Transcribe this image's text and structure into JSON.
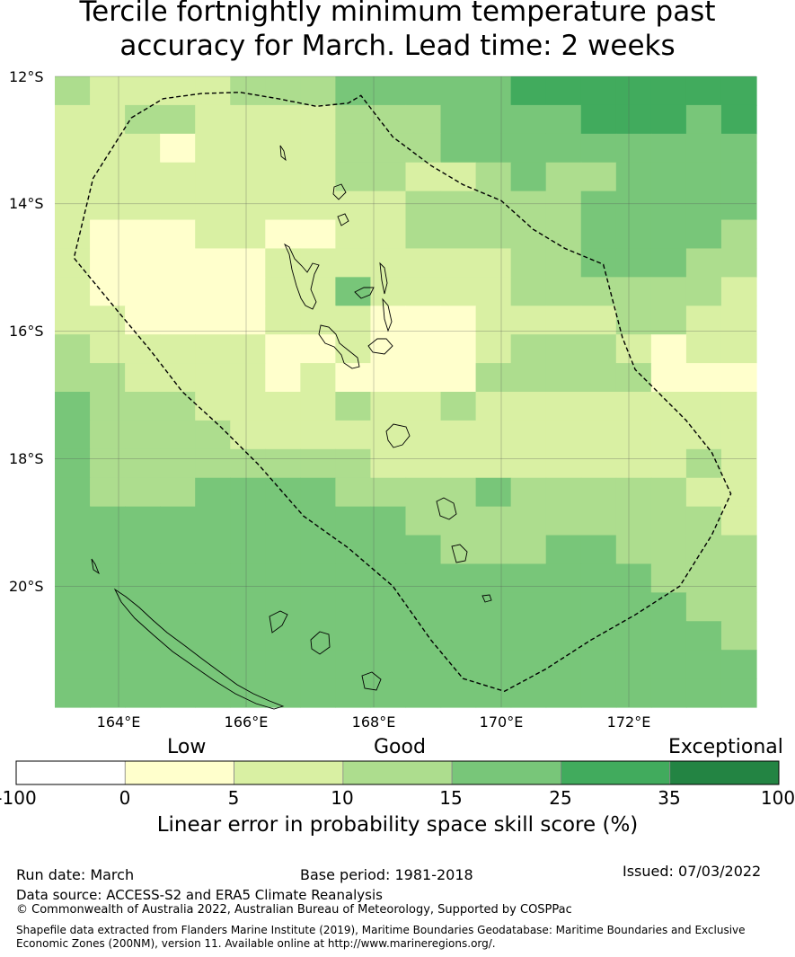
{
  "title_line1": "Tercile fortnightly minimum temperature past",
  "title_line2": "accuracy for March. Lead time: 2 weeks",
  "lat_labels": [
    "12°S",
    "14°S",
    "16°S",
    "18°S",
    "20°S"
  ],
  "lon_labels": [
    "164°E",
    "166°E",
    "168°E",
    "170°E",
    "172°E"
  ],
  "grid_extent": {
    "lon_min": 163,
    "lon_max": 174,
    "lat_max": -12,
    "lat_min": -21.9
  },
  "grid_classes": [
    [
      2,
      1,
      1,
      1,
      1,
      2,
      2,
      2,
      3,
      3,
      3,
      3,
      3,
      4,
      4,
      4,
      4,
      4,
      4,
      4
    ],
    [
      1,
      1,
      2,
      2,
      1,
      1,
      1,
      1,
      2,
      2,
      2,
      3,
      3,
      3,
      3,
      4,
      4,
      4,
      3,
      4
    ],
    [
      1,
      1,
      1,
      0,
      1,
      1,
      1,
      1,
      2,
      2,
      2,
      3,
      3,
      3,
      3,
      3,
      3,
      3,
      3,
      3
    ],
    [
      1,
      1,
      1,
      1,
      1,
      1,
      1,
      1,
      2,
      2,
      1,
      1,
      2,
      3,
      2,
      2,
      3,
      3,
      3,
      3
    ],
    [
      1,
      1,
      1,
      1,
      1,
      1,
      1,
      1,
      1,
      1,
      2,
      2,
      2,
      2,
      2,
      3,
      3,
      3,
      3,
      3
    ],
    [
      1,
      0,
      0,
      0,
      1,
      1,
      0,
      0,
      1,
      1,
      2,
      2,
      2,
      2,
      2,
      3,
      3,
      3,
      3,
      2
    ],
    [
      1,
      0,
      0,
      0,
      0,
      0,
      1,
      1,
      1,
      1,
      1,
      1,
      1,
      2,
      2,
      3,
      3,
      3,
      2,
      2
    ],
    [
      1,
      0,
      0,
      0,
      0,
      0,
      1,
      1,
      3,
      1,
      1,
      1,
      1,
      2,
      2,
      2,
      2,
      2,
      2,
      1
    ],
    [
      1,
      1,
      0,
      0,
      0,
      0,
      1,
      1,
      1,
      0,
      0,
      0,
      1,
      1,
      1,
      1,
      2,
      2,
      1,
      1
    ],
    [
      2,
      1,
      1,
      1,
      1,
      1,
      0,
      0,
      1,
      0,
      0,
      0,
      1,
      2,
      2,
      2,
      1,
      0,
      1,
      1
    ],
    [
      2,
      2,
      1,
      1,
      1,
      1,
      0,
      1,
      0,
      0,
      0,
      0,
      2,
      2,
      2,
      2,
      2,
      0,
      0,
      0
    ],
    [
      3,
      2,
      2,
      2,
      1,
      1,
      1,
      1,
      2,
      1,
      1,
      2,
      1,
      1,
      1,
      1,
      1,
      1,
      1,
      1
    ],
    [
      3,
      2,
      2,
      2,
      2,
      1,
      1,
      1,
      1,
      1,
      1,
      1,
      1,
      1,
      1,
      1,
      1,
      1,
      1,
      1
    ],
    [
      3,
      2,
      2,
      2,
      2,
      2,
      2,
      2,
      2,
      1,
      1,
      1,
      1,
      1,
      1,
      1,
      1,
      1,
      2,
      1
    ],
    [
      3,
      2,
      2,
      2,
      3,
      3,
      3,
      3,
      2,
      2,
      2,
      2,
      3,
      2,
      2,
      2,
      2,
      2,
      1,
      1
    ],
    [
      3,
      3,
      3,
      3,
      3,
      3,
      3,
      3,
      3,
      3,
      2,
      2,
      2,
      2,
      2,
      2,
      2,
      2,
      2,
      1
    ],
    [
      3,
      3,
      3,
      3,
      3,
      3,
      3,
      3,
      3,
      3,
      3,
      2,
      2,
      2,
      3,
      3,
      2,
      2,
      2,
      2
    ],
    [
      3,
      3,
      3,
      3,
      3,
      3,
      3,
      3,
      3,
      3,
      3,
      3,
      3,
      3,
      3,
      3,
      3,
      2,
      2,
      2
    ],
    [
      3,
      3,
      3,
      3,
      3,
      3,
      3,
      3,
      3,
      3,
      3,
      3,
      3,
      3,
      3,
      3,
      3,
      3,
      2,
      2
    ],
    [
      3,
      3,
      3,
      3,
      3,
      3,
      3,
      3,
      3,
      3,
      3,
      3,
      3,
      3,
      3,
      3,
      3,
      3,
      3,
      2
    ],
    [
      3,
      3,
      3,
      3,
      3,
      3,
      3,
      3,
      3,
      3,
      3,
      3,
      3,
      3,
      3,
      3,
      3,
      3,
      3,
      3
    ],
    [
      3,
      3,
      3,
      3,
      3,
      3,
      3,
      3,
      3,
      3,
      3,
      3,
      3,
      3,
      3,
      3,
      3,
      3,
      3,
      3
    ]
  ],
  "class_colors": [
    "#ffffcc",
    "#d9f0a3",
    "#addd8e",
    "#78c679",
    "#41ab5d",
    "#238443"
  ],
  "colorbar": {
    "categories": [
      "Low",
      "Good",
      "Exceptional"
    ],
    "ticks": [
      "-100",
      "0",
      "5",
      "10",
      "15",
      "25",
      "35",
      "100"
    ],
    "colors": [
      "#ffffff",
      "#ffffcc",
      "#d9f0a3",
      "#addd8e",
      "#78c679",
      "#41ab5d",
      "#238443"
    ],
    "label": "Linear error in probability space skill score (%)"
  },
  "eez_boundary": [
    [
      164.2,
      -12.65
    ],
    [
      164.7,
      -12.35
    ],
    [
      165.3,
      -12.27
    ],
    [
      165.9,
      -12.25
    ],
    [
      166.5,
      -12.35
    ],
    [
      167.1,
      -12.47
    ],
    [
      167.6,
      -12.42
    ],
    [
      167.8,
      -12.3
    ],
    [
      168.3,
      -12.95
    ],
    [
      168.9,
      -13.4
    ],
    [
      169.4,
      -13.7
    ],
    [
      170.0,
      -13.95
    ],
    [
      170.5,
      -14.4
    ],
    [
      171.0,
      -14.7
    ],
    [
      171.6,
      -14.95
    ],
    [
      171.9,
      -16.1
    ],
    [
      172.1,
      -16.6
    ],
    [
      172.5,
      -17.0
    ],
    [
      172.9,
      -17.4
    ],
    [
      173.3,
      -17.9
    ],
    [
      173.6,
      -18.55
    ],
    [
      173.3,
      -19.2
    ],
    [
      172.8,
      -20.0
    ],
    [
      172.1,
      -20.45
    ],
    [
      171.4,
      -20.85
    ],
    [
      170.7,
      -21.3
    ],
    [
      170.05,
      -21.65
    ],
    [
      169.4,
      -21.45
    ],
    [
      168.9,
      -20.85
    ],
    [
      168.3,
      -20.0
    ],
    [
      167.6,
      -19.4
    ],
    [
      166.9,
      -18.9
    ],
    [
      166.2,
      -18.1
    ],
    [
      165.6,
      -17.5
    ],
    [
      165.0,
      -16.95
    ],
    [
      164.5,
      -16.3
    ],
    [
      164.0,
      -15.7
    ],
    [
      163.3,
      -14.85
    ],
    [
      163.6,
      -13.6
    ]
  ],
  "footer": {
    "run_date": "Run date: March",
    "base_period": "Base period: 1981-2018",
    "issued": "Issued: 07/03/2022",
    "data_source": "Data source: ACCESS-S2 and ERA5 Climate Reanalysis",
    "copyright": "© Commonwealth of Australia 2022, Australian Bureau of Meteorology, Supported by COSPPac",
    "shapefile_line1": "Shapefile data extracted from Flanders Marine Institute (2019), Maritime Boundaries Geodatabase: Maritime Boundaries and Exclusive",
    "shapefile_line2": "Economic Zones (200NM), version 11. Available online at http://www.marineregions.org/."
  }
}
